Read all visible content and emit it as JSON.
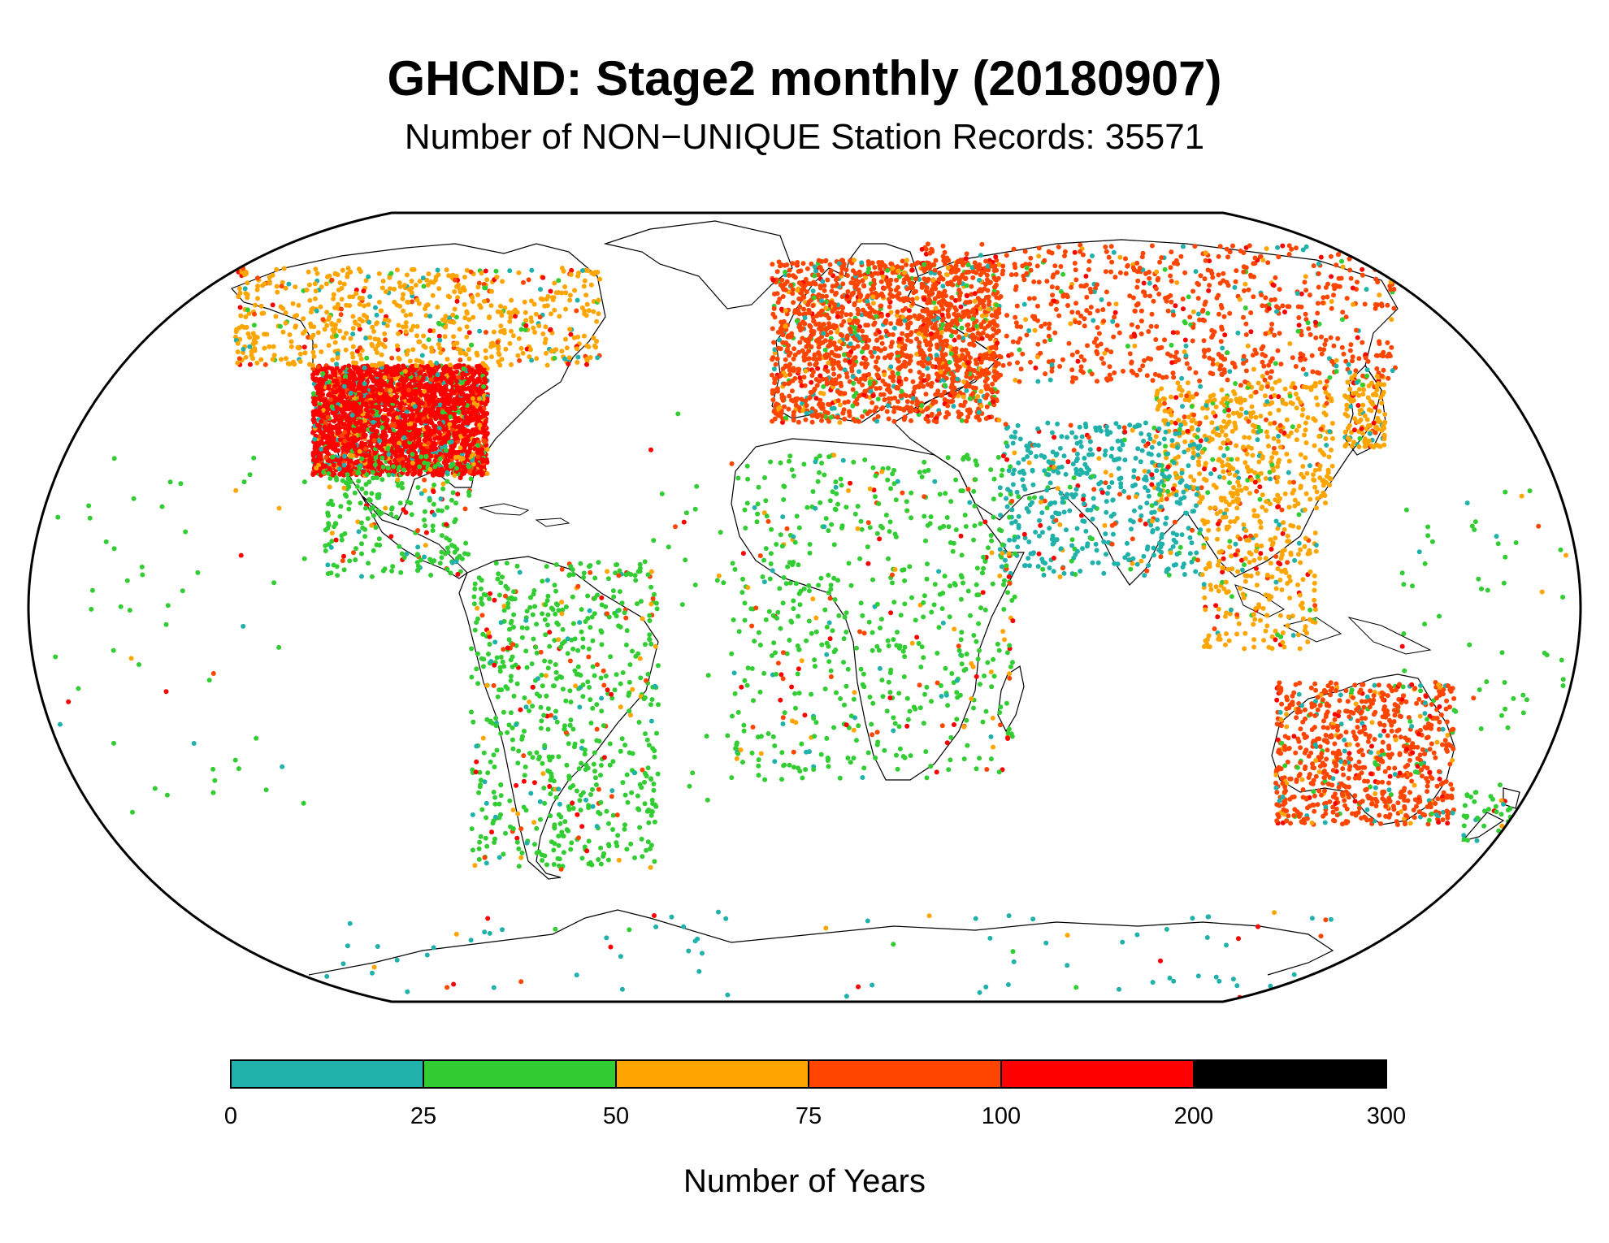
{
  "title": "GHCND: Stage2 monthly (20180907)",
  "subtitle": "Number of NON−UNIQUE Station Records: 35571",
  "colorbar": {
    "title": "Number of Years",
    "bins": [
      {
        "from": "0",
        "to": "25",
        "color": "#20b2aa"
      },
      {
        "from": "25",
        "to": "50",
        "color": "#32cd32"
      },
      {
        "from": "50",
        "to": "75",
        "color": "#ffa500"
      },
      {
        "from": "75",
        "to": "100",
        "color": "#ff4500"
      },
      {
        "from": "100",
        "to": "200",
        "color": "#ff0000"
      },
      {
        "from": "200",
        "to": "300",
        "color": "#000000"
      }
    ],
    "tick_labels": [
      "0",
      "25",
      "50",
      "75",
      "100",
      "200",
      "300"
    ]
  },
  "map": {
    "projection": "Robinson",
    "ocean_color": "#ffffff",
    "coastline_color": "#000000",
    "regions": [
      {
        "name": "United States",
        "dominant": "#ff0000",
        "density": "very high"
      },
      {
        "name": "Canada",
        "dominant": "#ffa500",
        "density": "high"
      },
      {
        "name": "Mexico and Central America",
        "dominant": "#32cd32",
        "density": "medium"
      },
      {
        "name": "South America",
        "dominant": "#32cd32",
        "density": "medium"
      },
      {
        "name": "Europe",
        "dominant": "#ff4500",
        "density": "very high"
      },
      {
        "name": "Russia and Central Asia",
        "dominant": "#ff4500",
        "density": "high"
      },
      {
        "name": "China",
        "dominant": "#ffa500",
        "density": "high"
      },
      {
        "name": "Japan",
        "dominant": "#ffa500",
        "density": "high"
      },
      {
        "name": "India and South Asia",
        "dominant": "#20b2aa",
        "density": "medium"
      },
      {
        "name": "Southeast Asia",
        "dominant": "#ffa500",
        "density": "medium"
      },
      {
        "name": "Africa",
        "dominant": "#32cd32",
        "density": "low"
      },
      {
        "name": "Australia",
        "dominant": "#ff4500",
        "density": "high"
      },
      {
        "name": "New Zealand",
        "dominant": "#32cd32",
        "density": "low"
      },
      {
        "name": "Antarctica",
        "dominant": "#20b2aa",
        "density": "sparse"
      },
      {
        "name": "Pacific and Atlantic islands",
        "dominant": "#32cd32",
        "density": "sparse"
      }
    ]
  }
}
